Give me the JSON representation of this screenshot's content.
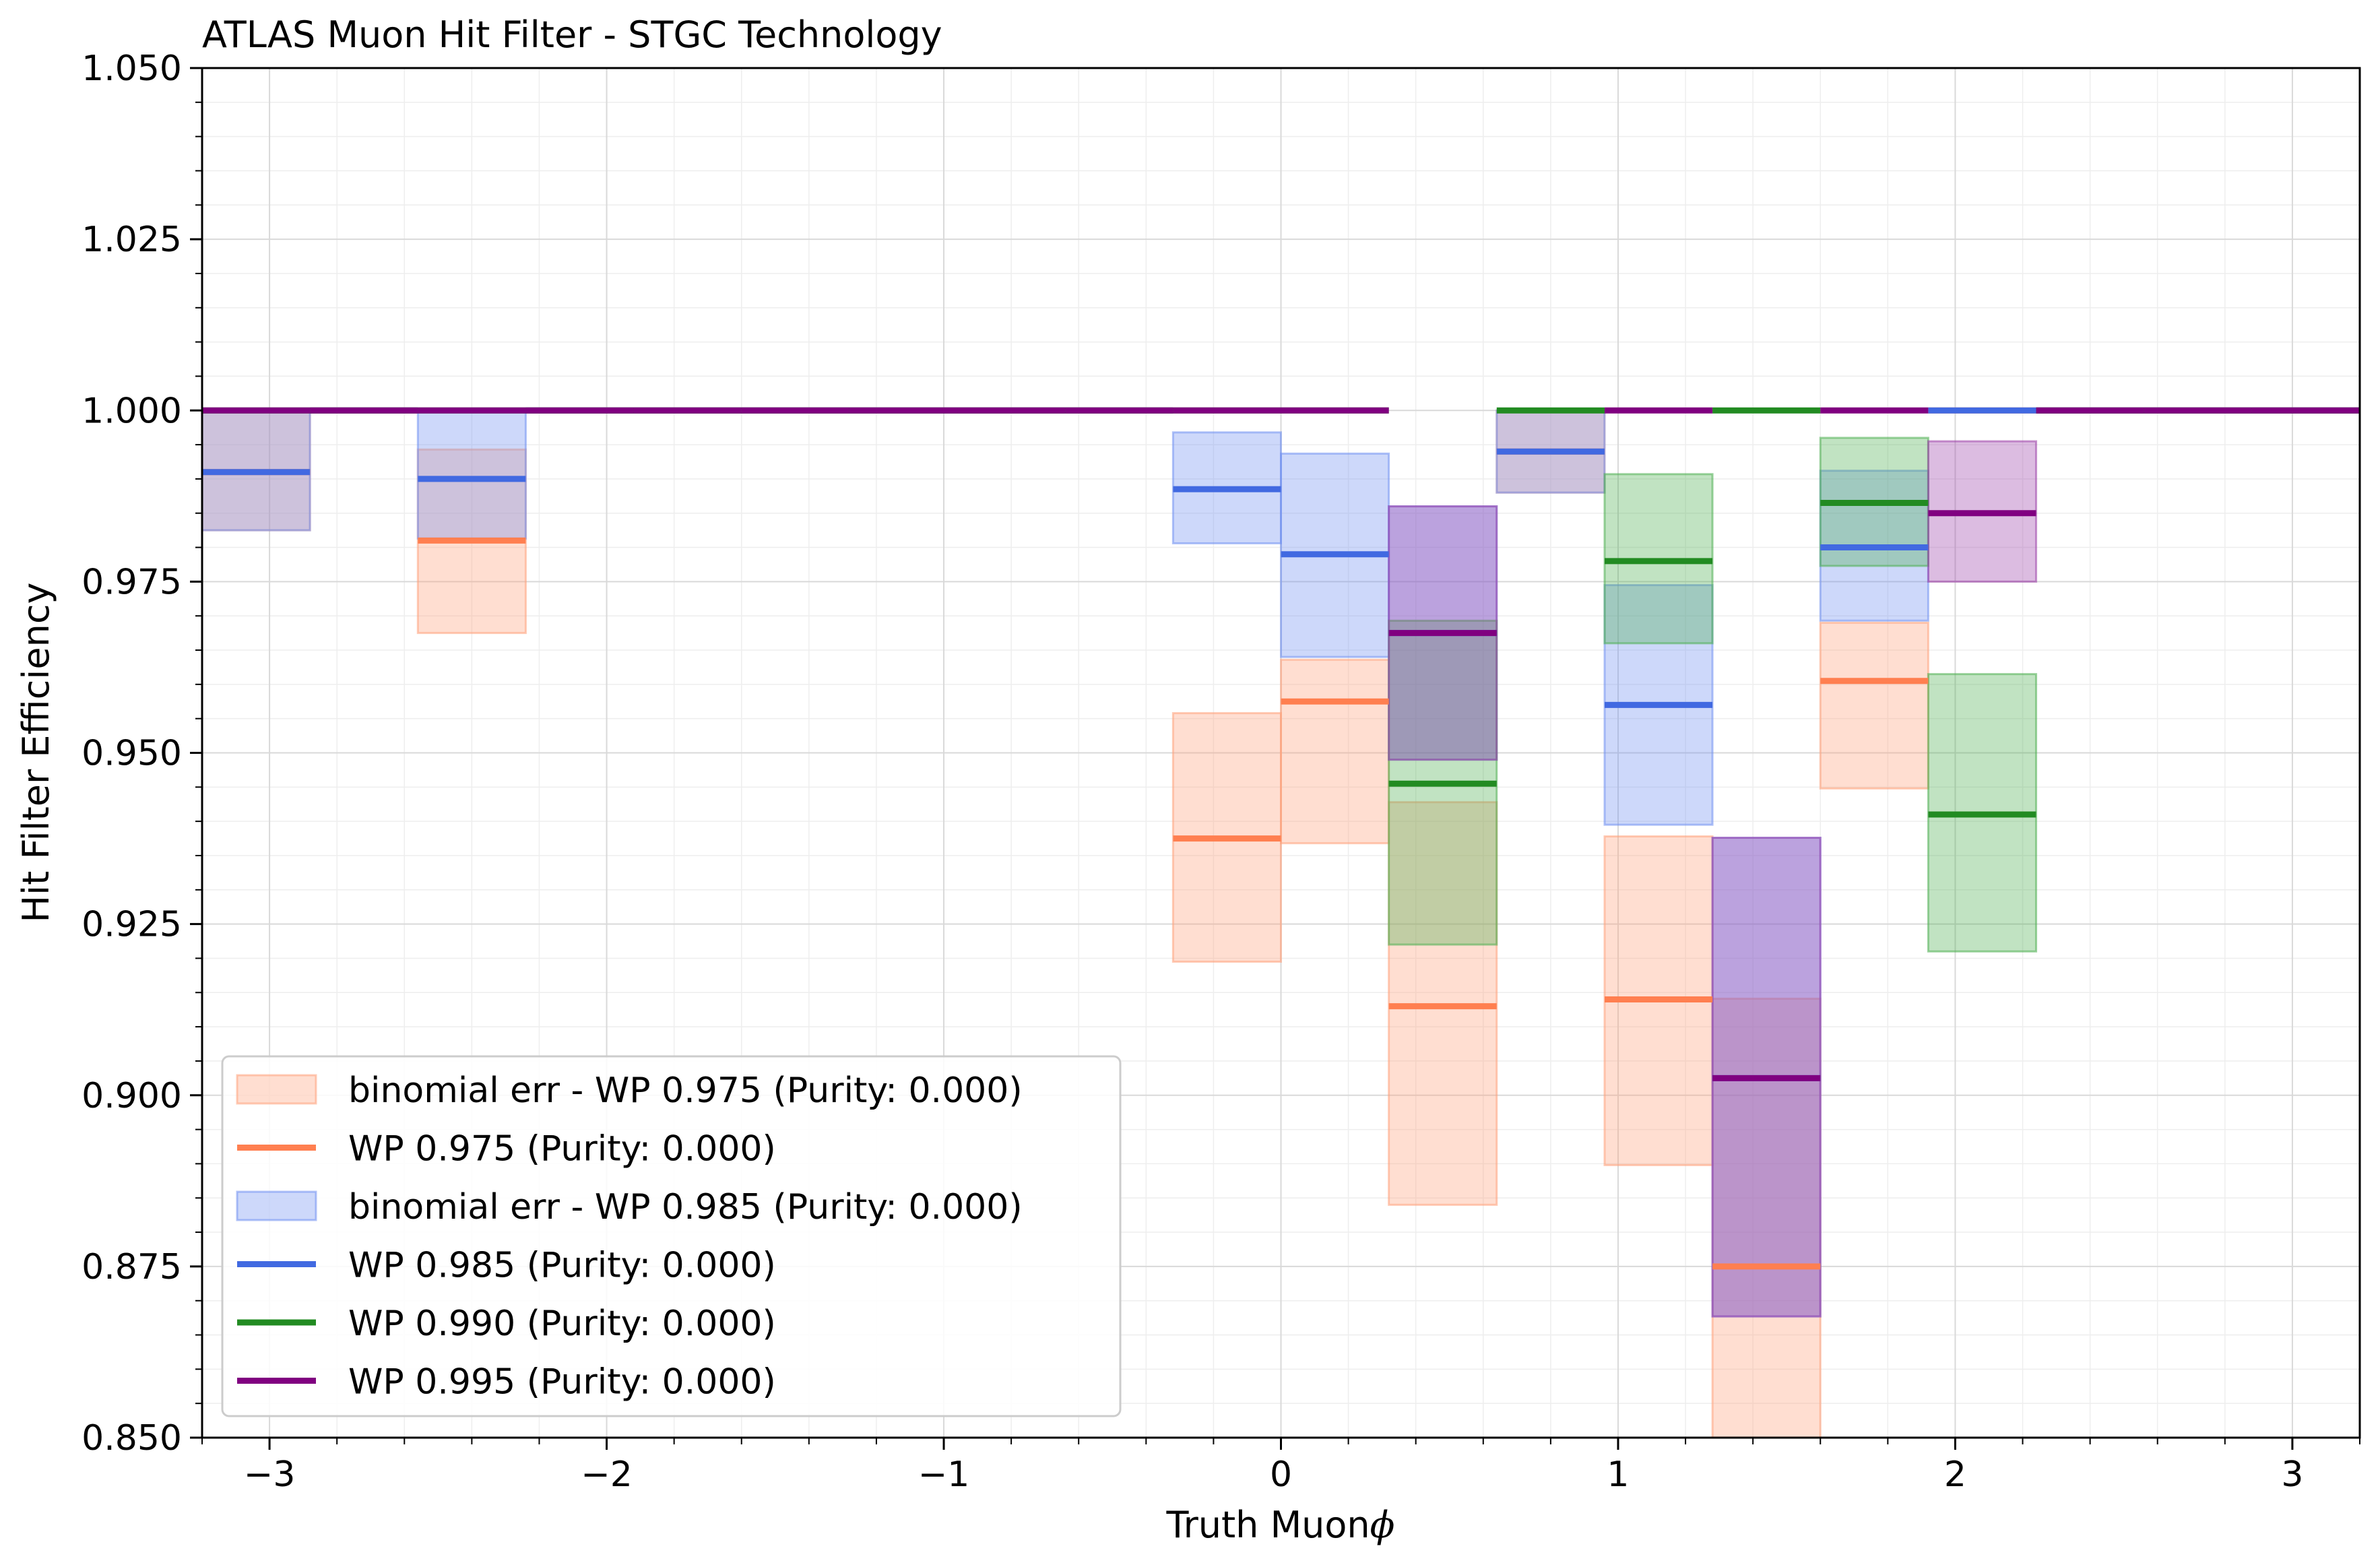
{
  "chart_data": {
    "type": "step",
    "title": "ATLAS Muon Hit Filter - STGC Technology",
    "xlabel": "Truth Muon",
    "xlabel_symbol": "ϕ",
    "ylabel": "Hit Filter Efficiency",
    "xlim": [
      -3.2,
      3.2
    ],
    "ylim": [
      0.85,
      1.05
    ],
    "x_ticks": [
      -3,
      -2,
      -1,
      0,
      1,
      2,
      3
    ],
    "x_tick_labels": [
      "−3",
      "−2",
      "−1",
      "0",
      "1",
      "2",
      "3"
    ],
    "y_ticks": [
      0.85,
      0.875,
      0.9,
      0.925,
      0.95,
      0.975,
      1.0,
      1.025,
      1.05
    ],
    "y_tick_labels": [
      "0.850",
      "0.875",
      "0.900",
      "0.925",
      "0.950",
      "0.975",
      "1.000",
      "1.025",
      "1.050"
    ],
    "grid": true,
    "legend_position": "lower-left",
    "bin_edges": [
      -3.2,
      -2.88,
      -2.56,
      -2.24,
      -1.92,
      -1.6,
      -1.28,
      -0.96,
      -0.64,
      -0.32,
      0.0,
      0.32,
      0.64,
      0.96,
      1.28,
      1.6,
      1.92,
      2.24,
      2.56,
      2.88,
      3.2
    ],
    "series": [
      {
        "name": "WP 0.975 (Purity: 0.000)",
        "band_name": "binomial err - WP 0.975 (Purity: 0.000)",
        "color": "#ff7f50",
        "band_color": "#ffa07a",
        "values": [
          0.991,
          1.0,
          0.981,
          1.0,
          1.0,
          1.0,
          1.0,
          1.0,
          1.0,
          0.9375,
          0.9575,
          0.913,
          0.994,
          0.914,
          0.875,
          0.9605,
          1.0,
          1.0,
          1.0,
          1.0
        ],
        "err_low": [
          0.9825,
          null,
          0.9675,
          null,
          null,
          null,
          null,
          null,
          null,
          0.9195,
          0.9368,
          0.884,
          0.988,
          0.8898,
          0.8487,
          0.9448,
          null,
          null,
          null,
          null
        ],
        "err_high": [
          1.0,
          null,
          0.9943,
          null,
          null,
          null,
          null,
          null,
          null,
          0.9558,
          0.9636,
          0.9428,
          1.0,
          0.9378,
          0.9141,
          0.969,
          null,
          null,
          null,
          null
        ]
      },
      {
        "name": "WP 0.985 (Purity: 0.000)",
        "band_name": "binomial err - WP 0.985 (Purity: 0.000)",
        "color": "#4169e1",
        "band_color": "#6f8ff0",
        "values": [
          0.991,
          1.0,
          0.99,
          1.0,
          1.0,
          1.0,
          1.0,
          1.0,
          1.0,
          0.9885,
          0.979,
          0.9675,
          0.994,
          0.957,
          0.9025,
          0.98,
          1.0,
          1.0,
          1.0,
          1.0
        ],
        "err_low": [
          0.9825,
          null,
          0.9813,
          null,
          null,
          null,
          null,
          null,
          null,
          0.9806,
          0.964,
          0.949,
          0.988,
          0.9395,
          0.8677,
          0.9693,
          null,
          null,
          null,
          null
        ],
        "err_high": [
          1.0,
          null,
          1.0,
          null,
          null,
          null,
          null,
          null,
          null,
          0.9968,
          0.9937,
          0.986,
          1.0,
          0.9745,
          0.9376,
          0.9912,
          null,
          null,
          null,
          null
        ]
      },
      {
        "name": "WP 0.990 (Purity: 0.000)",
        "color": "#228b22",
        "band_color": "#4caf50",
        "values": [
          1.0,
          1.0,
          1.0,
          1.0,
          1.0,
          1.0,
          1.0,
          1.0,
          1.0,
          1.0,
          1.0,
          0.9455,
          1.0,
          0.978,
          1.0,
          0.9865,
          0.941,
          1.0,
          1.0,
          1.0
        ],
        "err_low": [
          null,
          null,
          null,
          null,
          null,
          null,
          null,
          null,
          null,
          null,
          null,
          0.922,
          null,
          0.966,
          null,
          0.9773,
          0.921,
          null,
          null,
          null
        ],
        "err_high": [
          null,
          null,
          null,
          null,
          null,
          null,
          null,
          null,
          null,
          null,
          null,
          0.9693,
          null,
          0.9907,
          null,
          0.996,
          0.9615,
          null,
          null,
          null
        ]
      },
      {
        "name": "WP 0.995 (Purity: 0.000)",
        "color": "#800080",
        "band_color": "#9c3fa8",
        "values": [
          1.0,
          1.0,
          1.0,
          1.0,
          1.0,
          1.0,
          1.0,
          1.0,
          1.0,
          1.0,
          1.0,
          0.9675,
          null,
          1.0,
          0.9025,
          1.0,
          0.985,
          1.0,
          1.0,
          1.0
        ],
        "err_low": [
          null,
          null,
          null,
          null,
          null,
          null,
          null,
          null,
          null,
          null,
          null,
          0.949,
          null,
          null,
          0.8677,
          null,
          0.975,
          null,
          null,
          null
        ],
        "err_high": [
          null,
          null,
          null,
          null,
          null,
          null,
          null,
          null,
          null,
          null,
          null,
          0.986,
          null,
          null,
          0.9376,
          null,
          0.9955,
          null,
          null,
          null
        ]
      }
    ]
  }
}
